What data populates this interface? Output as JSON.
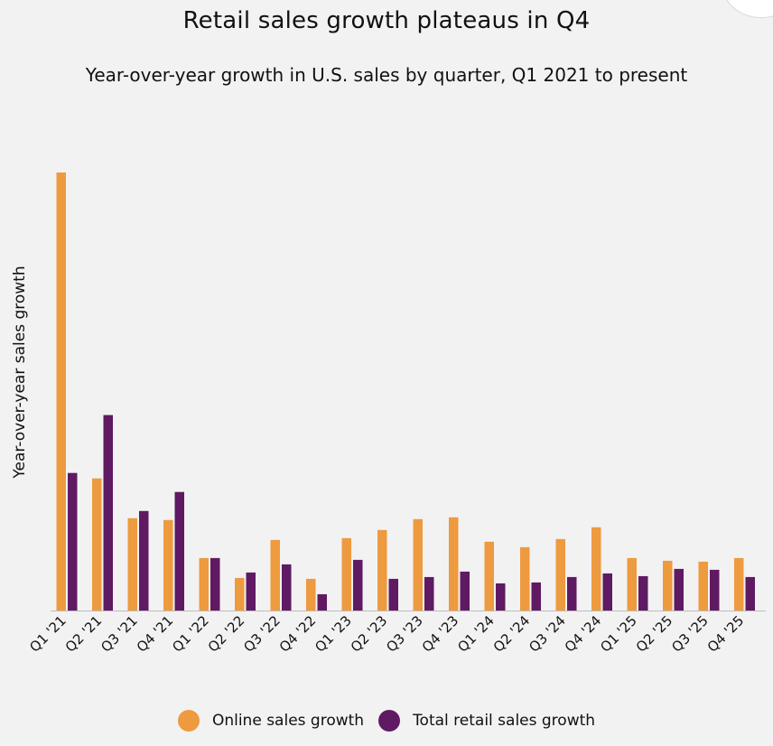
{
  "chart_data": {
    "type": "bar",
    "title": "Retail sales growth plateaus in Q4",
    "subtitle": "Year-over-year growth in U.S. sales by quarter, Q1 2021 to present",
    "xlabel": "",
    "ylabel": "Year-over-year sales growth",
    "ylim": [
      0,
      49
    ],
    "grid": false,
    "legend_position": "bottom",
    "categories": [
      "Q1 '21",
      "Q2 '21",
      "Q3 '21",
      "Q4 '21",
      "Q1 '22",
      "Q2 '22",
      "Q3 '22",
      "Q4 '22",
      "Q1 '23",
      "Q2 '23",
      "Q3 '23",
      "Q4 '23",
      "Q1 '24",
      "Q2 '24",
      "Q3 '24",
      "Q4 '24",
      "Q1 '25",
      "Q2 '25",
      "Q3 '25",
      "Q4 '25"
    ],
    "series": [
      {
        "name": "Online sales growth",
        "color": "#ee9a3f",
        "values": [
          48.4,
          14.6,
          10.2,
          10.0,
          5.8,
          3.6,
          7.8,
          3.5,
          8.0,
          8.9,
          10.1,
          10.3,
          7.6,
          7.0,
          7.9,
          9.2,
          5.8,
          5.5,
          5.4,
          5.8
        ]
      },
      {
        "name": "Total retail sales growth",
        "color": "#5f1a63",
        "values": [
          15.2,
          21.6,
          11.0,
          13.1,
          5.8,
          4.2,
          5.1,
          1.8,
          5.6,
          3.5,
          3.7,
          4.3,
          3.0,
          3.1,
          3.7,
          4.1,
          3.8,
          4.6,
          4.5,
          3.7
        ]
      }
    ]
  }
}
